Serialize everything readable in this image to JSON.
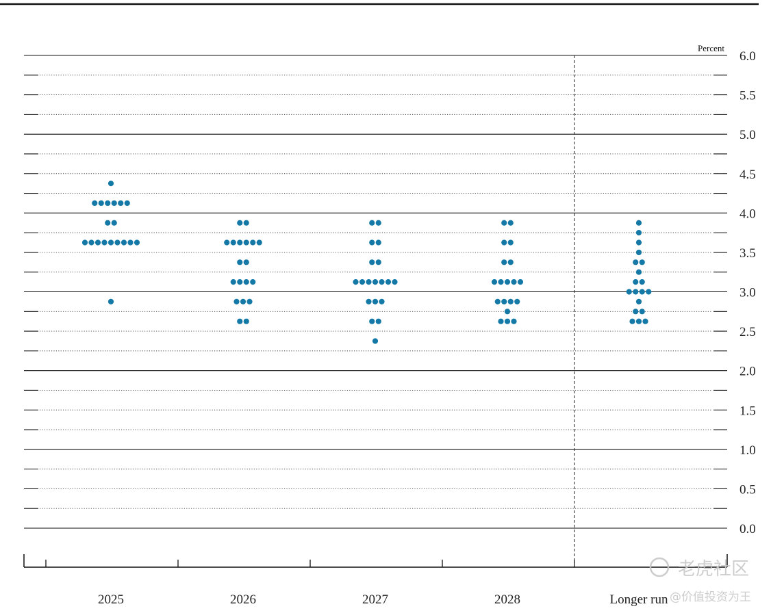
{
  "chart_data": {
    "type": "scatter",
    "unit_label": "Percent",
    "ylim": [
      0,
      6
    ],
    "y_ticks": [
      0.0,
      0.5,
      1.0,
      1.5,
      2.0,
      2.5,
      3.0,
      3.5,
      4.0,
      4.5,
      5.0,
      5.5,
      6.0
    ],
    "y_tick_labels": [
      "0.0",
      "0.5",
      "1.0",
      "1.5",
      "2.0",
      "2.5",
      "3.0",
      "3.5",
      "4.0",
      "4.5",
      "5.0",
      "5.5",
      "6.0"
    ],
    "categories": [
      "2025",
      "2026",
      "2027",
      "2028",
      "Longer run"
    ],
    "dot_color": "#1479a6",
    "series": [
      {
        "category": "2025",
        "points": [
          {
            "y": 4.375,
            "count": 1
          },
          {
            "y": 4.125,
            "count": 6
          },
          {
            "y": 3.875,
            "count": 2
          },
          {
            "y": 3.625,
            "count": 9
          },
          {
            "y": 2.875,
            "count": 1
          }
        ]
      },
      {
        "category": "2026",
        "points": [
          {
            "y": 3.875,
            "count": 2
          },
          {
            "y": 3.625,
            "count": 6
          },
          {
            "y": 3.375,
            "count": 2
          },
          {
            "y": 3.125,
            "count": 4
          },
          {
            "y": 2.875,
            "count": 3
          },
          {
            "y": 2.625,
            "count": 2
          }
        ]
      },
      {
        "category": "2027",
        "points": [
          {
            "y": 3.875,
            "count": 2
          },
          {
            "y": 3.625,
            "count": 2
          },
          {
            "y": 3.375,
            "count": 2
          },
          {
            "y": 3.125,
            "count": 7
          },
          {
            "y": 2.875,
            "count": 3
          },
          {
            "y": 2.625,
            "count": 2
          },
          {
            "y": 2.375,
            "count": 1
          }
        ]
      },
      {
        "category": "2028",
        "points": [
          {
            "y": 3.875,
            "count": 2
          },
          {
            "y": 3.625,
            "count": 2
          },
          {
            "y": 3.375,
            "count": 2
          },
          {
            "y": 3.125,
            "count": 5
          },
          {
            "y": 2.875,
            "count": 4
          },
          {
            "y": 2.75,
            "count": 1
          },
          {
            "y": 2.625,
            "count": 3
          }
        ]
      },
      {
        "category": "Longer run",
        "points": [
          {
            "y": 3.875,
            "count": 1
          },
          {
            "y": 3.75,
            "count": 1
          },
          {
            "y": 3.625,
            "count": 1
          },
          {
            "y": 3.5,
            "count": 1
          },
          {
            "y": 3.375,
            "count": 2
          },
          {
            "y": 3.25,
            "count": 1
          },
          {
            "y": 3.125,
            "count": 2
          },
          {
            "y": 3.0,
            "count": 4
          },
          {
            "y": 2.875,
            "count": 1
          },
          {
            "y": 2.75,
            "count": 2
          },
          {
            "y": 2.625,
            "count": 3
          }
        ]
      }
    ]
  },
  "watermark": {
    "text_main": "老虎社区",
    "text_sub": "@价值投资为王"
  }
}
